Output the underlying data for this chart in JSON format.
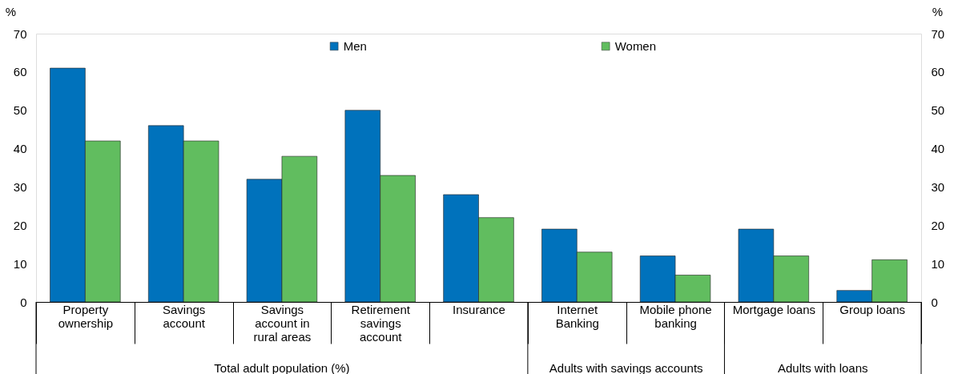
{
  "chart_data": {
    "type": "bar",
    "categories": [
      "Property ownership",
      "Savings account",
      "Savings account in rural areas",
      "Retirement savings account",
      "Insurance",
      "Internet Banking",
      "Mobile phone banking",
      "Mortgage loans",
      "Group loans"
    ],
    "series": [
      {
        "name": "Men",
        "color": "#0072bc",
        "values": [
          61,
          46,
          32,
          50,
          28,
          19,
          12,
          19,
          3
        ]
      },
      {
        "name": "Women",
        "color": "#61bd5f",
        "values": [
          42,
          42,
          38,
          33,
          22,
          13,
          7,
          12,
          11
        ]
      }
    ],
    "ylabel": "%",
    "y2label": "%",
    "ylim": [
      0,
      70
    ],
    "yticks": [
      0,
      10,
      20,
      30,
      40,
      50,
      60,
      70
    ],
    "y2lim": [
      0,
      70
    ],
    "y2ticks": [
      0,
      10,
      20,
      30,
      40,
      50,
      60,
      70
    ],
    "annotations": [
      "Total adult population (%)",
      "Adults with savings accounts",
      "Adults with loans"
    ],
    "legend": "top",
    "grid": false
  }
}
